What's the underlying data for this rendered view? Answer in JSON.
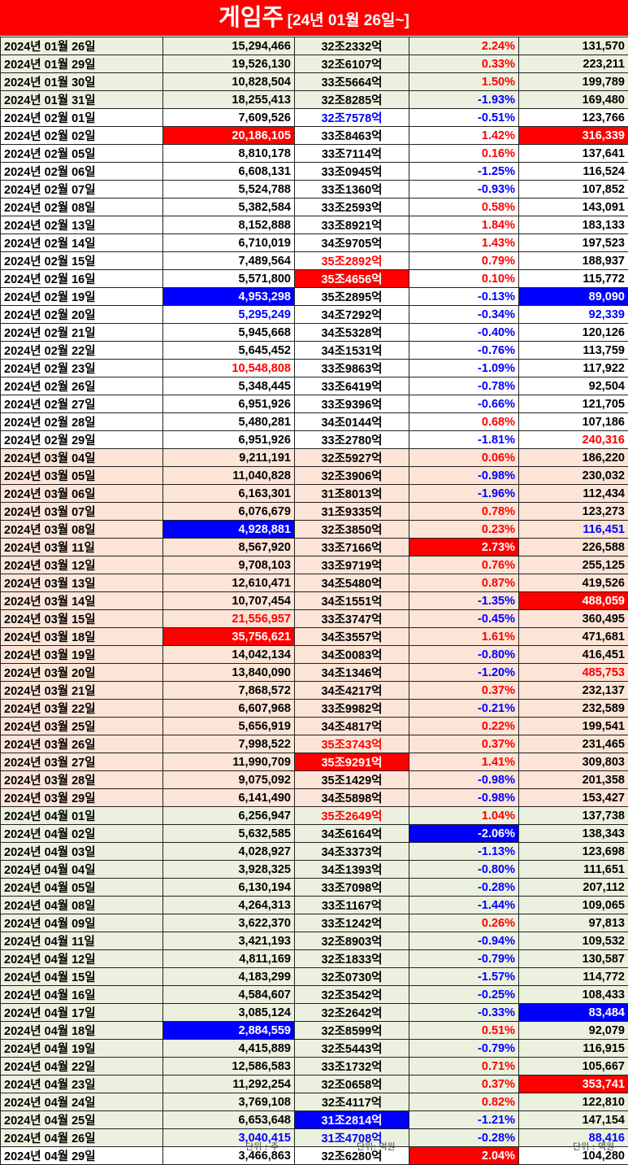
{
  "header": {
    "title": "게임주",
    "subtitle": "[24년 01월 26일~]"
  },
  "footer": {
    "unit_volume": "단위 : 주",
    "unit_cap": "단위: 억원",
    "unit_amount": "단위 : 억원"
  },
  "colors": {
    "red": "#ff0000",
    "blue": "#0000ff",
    "green_bg": "#ebf1de",
    "peach_bg": "#fce4d6"
  },
  "rows": [
    {
      "date": "2024년 01월 26일",
      "volume": "15,294,466",
      "cap": "32조2332억",
      "change": "2.24%",
      "amount": "131,570",
      "g": "green",
      "s": [
        "",
        "",
        "",
        "fr",
        ""
      ]
    },
    {
      "date": "2024년 01월 29일",
      "volume": "19,526,130",
      "cap": "32조6107억",
      "change": "0.33%",
      "amount": "223,211",
      "g": "green",
      "s": [
        "",
        "",
        "",
        "fr",
        ""
      ]
    },
    {
      "date": "2024년 01월 30일",
      "volume": "10,828,504",
      "cap": "33조5664억",
      "change": "1.50%",
      "amount": "199,789",
      "g": "green",
      "s": [
        "",
        "",
        "",
        "fr",
        ""
      ]
    },
    {
      "date": "2024년 01월 31일",
      "volume": "18,255,413",
      "cap": "32조8285억",
      "change": "-1.93%",
      "amount": "169,480",
      "g": "green",
      "s": [
        "",
        "",
        "",
        "fb",
        ""
      ]
    },
    {
      "date": "2024년 02월 01일",
      "volume": "7,609,526",
      "cap": "32조7578억",
      "change": "-0.51%",
      "amount": "123,766",
      "g": "white",
      "s": [
        "",
        "",
        "fb",
        "fb",
        ""
      ]
    },
    {
      "date": "2024년 02월 02일",
      "volume": "20,186,105",
      "cap": "33조8463억",
      "change": "1.42%",
      "amount": "316,339",
      "g": "white",
      "s": [
        "",
        "br",
        "",
        "fr",
        "br"
      ]
    },
    {
      "date": "2024년 02월 05일",
      "volume": "8,810,178",
      "cap": "33조7114억",
      "change": "0.16%",
      "amount": "137,641",
      "g": "white",
      "s": [
        "",
        "",
        "",
        "fr",
        ""
      ]
    },
    {
      "date": "2024년 02월 06일",
      "volume": "6,608,131",
      "cap": "33조0945억",
      "change": "-1.25%",
      "amount": "116,524",
      "g": "white",
      "s": [
        "",
        "",
        "",
        "fb",
        ""
      ]
    },
    {
      "date": "2024년 02월 07일",
      "volume": "5,524,788",
      "cap": "33조1360억",
      "change": "-0.93%",
      "amount": "107,852",
      "g": "white",
      "s": [
        "",
        "",
        "",
        "fb",
        ""
      ]
    },
    {
      "date": "2024년 02월 08일",
      "volume": "5,382,584",
      "cap": "33조2593억",
      "change": "0.58%",
      "amount": "143,091",
      "g": "white",
      "s": [
        "",
        "",
        "",
        "fr",
        ""
      ]
    },
    {
      "date": "2024년 02월 13일",
      "volume": "8,152,888",
      "cap": "33조8921억",
      "change": "1.84%",
      "amount": "183,133",
      "g": "white",
      "s": [
        "",
        "",
        "",
        "fr",
        ""
      ]
    },
    {
      "date": "2024년 02월 14일",
      "volume": "6,710,019",
      "cap": "34조9705억",
      "change": "1.43%",
      "amount": "197,523",
      "g": "white",
      "s": [
        "",
        "",
        "",
        "fr",
        ""
      ]
    },
    {
      "date": "2024년 02월 15일",
      "volume": "7,489,564",
      "cap": "35조2892억",
      "change": "0.79%",
      "amount": "188,937",
      "g": "white",
      "s": [
        "",
        "",
        "fr",
        "fr",
        ""
      ]
    },
    {
      "date": "2024년 02월 16일",
      "volume": "5,571,800",
      "cap": "35조4656억",
      "change": "0.10%",
      "amount": "115,772",
      "g": "white",
      "s": [
        "",
        "",
        "br",
        "fr",
        ""
      ]
    },
    {
      "date": "2024년 02월 19일",
      "volume": "4,953,298",
      "cap": "35조2895억",
      "change": "-0.13%",
      "amount": "89,090",
      "g": "white",
      "s": [
        "",
        "bb",
        "",
        "fb",
        "bb"
      ]
    },
    {
      "date": "2024년 02월 20일",
      "volume": "5,295,249",
      "cap": "34조7292억",
      "change": "-0.34%",
      "amount": "92,339",
      "g": "white",
      "s": [
        "",
        "fb",
        "",
        "fb",
        "fb"
      ]
    },
    {
      "date": "2024년 02월 21일",
      "volume": "5,945,668",
      "cap": "34조5328억",
      "change": "-0.40%",
      "amount": "120,126",
      "g": "white",
      "s": [
        "",
        "",
        "",
        "fb",
        ""
      ]
    },
    {
      "date": "2024년 02월 22일",
      "volume": "5,645,452",
      "cap": "34조1531억",
      "change": "-0.76%",
      "amount": "113,759",
      "g": "white",
      "s": [
        "",
        "",
        "",
        "fb",
        ""
      ]
    },
    {
      "date": "2024년 02월 23일",
      "volume": "10,548,808",
      "cap": "33조9863억",
      "change": "-1.09%",
      "amount": "117,922",
      "g": "white",
      "s": [
        "",
        "fr",
        "",
        "fb",
        ""
      ]
    },
    {
      "date": "2024년 02월 26일",
      "volume": "5,348,445",
      "cap": "33조6419억",
      "change": "-0.78%",
      "amount": "92,504",
      "g": "white",
      "s": [
        "",
        "",
        "",
        "fb",
        ""
      ]
    },
    {
      "date": "2024년 02월 27일",
      "volume": "6,951,926",
      "cap": "33조9396억",
      "change": "-0.66%",
      "amount": "121,705",
      "g": "white",
      "s": [
        "",
        "",
        "",
        "fb",
        ""
      ]
    },
    {
      "date": "2024년 02월 28일",
      "volume": "5,480,281",
      "cap": "34조0144억",
      "change": "0.68%",
      "amount": "107,186",
      "g": "white",
      "s": [
        "",
        "",
        "",
        "fr",
        ""
      ]
    },
    {
      "date": "2024년 02월 29일",
      "volume": "6,951,926",
      "cap": "33조2780억",
      "change": "-1.81%",
      "amount": "240,316",
      "g": "white",
      "s": [
        "",
        "",
        "",
        "fb",
        "fr"
      ]
    },
    {
      "date": "2024년 03월 04일",
      "volume": "9,211,191",
      "cap": "32조5927억",
      "change": "0.06%",
      "amount": "186,220",
      "g": "peach",
      "s": [
        "",
        "",
        "",
        "fr",
        ""
      ]
    },
    {
      "date": "2024년 03월 05일",
      "volume": "11,040,828",
      "cap": "32조3906억",
      "change": "-0.98%",
      "amount": "230,032",
      "g": "peach",
      "s": [
        "",
        "",
        "",
        "fb",
        ""
      ]
    },
    {
      "date": "2024년 03월 06일",
      "volume": "6,163,301",
      "cap": "31조8013억",
      "change": "-1.96%",
      "amount": "112,434",
      "g": "peach",
      "s": [
        "",
        "",
        "",
        "fb",
        ""
      ]
    },
    {
      "date": "2024년 03월 07일",
      "volume": "6,076,679",
      "cap": "31조9335억",
      "change": "0.78%",
      "amount": "123,273",
      "g": "peach",
      "s": [
        "",
        "",
        "",
        "fr",
        ""
      ]
    },
    {
      "date": "2024년 03월 08일",
      "volume": "4,928,881",
      "cap": "32조3850억",
      "change": "0.23%",
      "amount": "116,451",
      "g": "peach",
      "s": [
        "",
        "bb",
        "",
        "fr",
        "fb"
      ]
    },
    {
      "date": "2024년 03월 11일",
      "volume": "8,567,920",
      "cap": "33조7166억",
      "change": "2.73%",
      "amount": "226,588",
      "g": "peach",
      "s": [
        "",
        "",
        "",
        "br",
        ""
      ]
    },
    {
      "date": "2024년 03월 12일",
      "volume": "9,708,103",
      "cap": "33조9719억",
      "change": "0.76%",
      "amount": "255,125",
      "g": "peach",
      "s": [
        "",
        "",
        "",
        "fr",
        ""
      ]
    },
    {
      "date": "2024년 03월 13일",
      "volume": "12,610,471",
      "cap": "34조5480억",
      "change": "0.87%",
      "amount": "419,526",
      "g": "peach",
      "s": [
        "",
        "",
        "",
        "fr",
        ""
      ]
    },
    {
      "date": "2024년 03월 14일",
      "volume": "10,707,454",
      "cap": "34조1551억",
      "change": "-1.35%",
      "amount": "488,059",
      "g": "peach",
      "s": [
        "",
        "",
        "",
        "fb",
        "br"
      ]
    },
    {
      "date": "2024년 03월 15일",
      "volume": "21,556,957",
      "cap": "33조3747억",
      "change": "-0.45%",
      "amount": "360,495",
      "g": "peach",
      "s": [
        "",
        "fr",
        "",
        "fb",
        ""
      ]
    },
    {
      "date": "2024년 03월 18일",
      "volume": "35,756,621",
      "cap": "34조3557억",
      "change": "1.61%",
      "amount": "471,681",
      "g": "peach",
      "s": [
        "",
        "br",
        "",
        "fr",
        ""
      ]
    },
    {
      "date": "2024년 03월 19일",
      "volume": "14,042,134",
      "cap": "34조0083억",
      "change": "-0.80%",
      "amount": "416,451",
      "g": "peach",
      "s": [
        "",
        "",
        "",
        "fb",
        ""
      ]
    },
    {
      "date": "2024년 03월 20일",
      "volume": "13,840,090",
      "cap": "34조1346억",
      "change": "-1.20%",
      "amount": "485,753",
      "g": "peach",
      "s": [
        "",
        "",
        "",
        "fb",
        "fr"
      ]
    },
    {
      "date": "2024년 03월 21일",
      "volume": "7,868,572",
      "cap": "34조4217억",
      "change": "0.37%",
      "amount": "232,137",
      "g": "peach",
      "s": [
        "",
        "",
        "",
        "fr",
        ""
      ]
    },
    {
      "date": "2024년 03월 22일",
      "volume": "6,607,968",
      "cap": "33조9982억",
      "change": "-0.21%",
      "amount": "232,589",
      "g": "peach",
      "s": [
        "",
        "",
        "",
        "fb",
        ""
      ]
    },
    {
      "date": "2024년 03월 25일",
      "volume": "5,656,919",
      "cap": "34조4817억",
      "change": "0.22%",
      "amount": "199,541",
      "g": "peach",
      "s": [
        "",
        "",
        "",
        "fr",
        ""
      ]
    },
    {
      "date": "2024년 03월 26일",
      "volume": "7,998,522",
      "cap": "35조3743억",
      "change": "0.37%",
      "amount": "231,465",
      "g": "peach",
      "s": [
        "",
        "",
        "fr",
        "fr",
        ""
      ]
    },
    {
      "date": "2024년 03월 27일",
      "volume": "11,990,709",
      "cap": "35조9291억",
      "change": "1.41%",
      "amount": "309,803",
      "g": "peach",
      "s": [
        "",
        "",
        "br",
        "fr",
        ""
      ]
    },
    {
      "date": "2024년 03월 28일",
      "volume": "9,075,092",
      "cap": "35조1429억",
      "change": "-0.98%",
      "amount": "201,358",
      "g": "peach",
      "s": [
        "",
        "",
        "",
        "fb",
        ""
      ]
    },
    {
      "date": "2024년 03월 29일",
      "volume": "6,141,490",
      "cap": "34조5898억",
      "change": "-0.98%",
      "amount": "153,427",
      "g": "peach",
      "s": [
        "",
        "",
        "",
        "fb",
        ""
      ]
    },
    {
      "date": "2024년 04월 01일",
      "volume": "6,256,947",
      "cap": "35조2649억",
      "change": "1.04%",
      "amount": "137,738",
      "g": "green",
      "s": [
        "",
        "",
        "fr",
        "fr",
        ""
      ]
    },
    {
      "date": "2024년 04월 02일",
      "volume": "5,632,585",
      "cap": "34조6164억",
      "change": "-2.06%",
      "amount": "138,343",
      "g": "green",
      "s": [
        "",
        "",
        "",
        "bb",
        ""
      ]
    },
    {
      "date": "2024년 04월 03일",
      "volume": "4,028,927",
      "cap": "34조3373억",
      "change": "-1.13%",
      "amount": "123,698",
      "g": "green",
      "s": [
        "",
        "",
        "",
        "fb",
        ""
      ]
    },
    {
      "date": "2024년 04월 04일",
      "volume": "3,928,325",
      "cap": "34조1393억",
      "change": "-0.80%",
      "amount": "111,651",
      "g": "green",
      "s": [
        "",
        "",
        "",
        "fb",
        ""
      ]
    },
    {
      "date": "2024년 04월 05일",
      "volume": "6,130,194",
      "cap": "33조7098억",
      "change": "-0.28%",
      "amount": "207,112",
      "g": "green",
      "s": [
        "",
        "",
        "",
        "fb",
        ""
      ]
    },
    {
      "date": "2024년 04월 08일",
      "volume": "4,264,313",
      "cap": "33조1167억",
      "change": "-1.44%",
      "amount": "109,065",
      "g": "green",
      "s": [
        "",
        "",
        "",
        "fb",
        ""
      ]
    },
    {
      "date": "2024년 04월 09일",
      "volume": "3,622,370",
      "cap": "33조1242억",
      "change": "0.26%",
      "amount": "97,813",
      "g": "green",
      "s": [
        "",
        "",
        "",
        "fr",
        ""
      ]
    },
    {
      "date": "2024년 04월 11일",
      "volume": "3,421,193",
      "cap": "32조8903억",
      "change": "-0.94%",
      "amount": "109,532",
      "g": "green",
      "s": [
        "",
        "",
        "",
        "fb",
        ""
      ]
    },
    {
      "date": "2024년 04월 12일",
      "volume": "4,811,169",
      "cap": "32조1833억",
      "change": "-0.79%",
      "amount": "130,587",
      "g": "green",
      "s": [
        "",
        "",
        "",
        "fb",
        ""
      ]
    },
    {
      "date": "2024년 04월 15일",
      "volume": "4,183,299",
      "cap": "32조0730억",
      "change": "-1.57%",
      "amount": "114,772",
      "g": "green",
      "s": [
        "",
        "",
        "",
        "fb",
        ""
      ]
    },
    {
      "date": "2024년 04월 16일",
      "volume": "4,584,607",
      "cap": "32조3542억",
      "change": "-0.25%",
      "amount": "108,433",
      "g": "green",
      "s": [
        "",
        "",
        "",
        "fb",
        ""
      ]
    },
    {
      "date": "2024년 04월 17일",
      "volume": "3,085,124",
      "cap": "32조2642억",
      "change": "-0.33%",
      "amount": "83,484",
      "g": "green",
      "s": [
        "",
        "",
        "",
        "fb",
        "bb"
      ]
    },
    {
      "date": "2024년 04월 18일",
      "volume": "2,884,559",
      "cap": "32조8599억",
      "change": "0.51%",
      "amount": "92,079",
      "g": "green",
      "s": [
        "",
        "bb",
        "",
        "fr",
        ""
      ]
    },
    {
      "date": "2024년 04월 19일",
      "volume": "4,415,889",
      "cap": "32조5443억",
      "change": "-0.79%",
      "amount": "116,915",
      "g": "green",
      "s": [
        "",
        "",
        "",
        "fb",
        ""
      ]
    },
    {
      "date": "2024년 04월 22일",
      "volume": "12,586,583",
      "cap": "33조1732억",
      "change": "0.71%",
      "amount": "105,667",
      "g": "green",
      "s": [
        "",
        "",
        "",
        "fr",
        ""
      ]
    },
    {
      "date": "2024년 04월 23일",
      "volume": "11,292,254",
      "cap": "32조0658억",
      "change": "0.37%",
      "amount": "353,741",
      "g": "green",
      "s": [
        "",
        "",
        "",
        "fr",
        "br"
      ]
    },
    {
      "date": "2024년 04월 24일",
      "volume": "3,769,108",
      "cap": "32조4117억",
      "change": "0.82%",
      "amount": "122,810",
      "g": "green",
      "s": [
        "",
        "",
        "",
        "fr",
        ""
      ]
    },
    {
      "date": "2024년 04월 25일",
      "volume": "6,653,648",
      "cap": "31조2814억",
      "change": "-1.21%",
      "amount": "147,154",
      "g": "green",
      "s": [
        "",
        "",
        "bb",
        "fb",
        ""
      ]
    },
    {
      "date": "2024년 04월 26일",
      "volume": "3,040,415",
      "cap": "31조4708억",
      "change": "-0.28%",
      "amount": "88,416",
      "g": "green",
      "s": [
        "",
        "fb",
        "fb",
        "fb",
        "fb"
      ]
    },
    {
      "date": "2024년 04월 29일",
      "volume": "3,466,863",
      "cap": "32조6280억",
      "change": "2.04%",
      "amount": "104,280",
      "g": "white",
      "s": [
        "",
        "",
        "",
        "br",
        ""
      ],
      "last": true
    }
  ]
}
